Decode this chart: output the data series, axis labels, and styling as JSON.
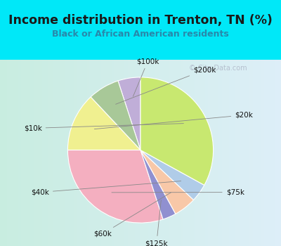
{
  "title": "Income distribution in Trenton, TN (%)",
  "subtitle": "Black or African American residents",
  "watermark": "© City-Data.com",
  "labels": [
    "$100k",
    "$200k",
    "$20k",
    "$75k",
    "$125k",
    "$60k",
    "$40k",
    "$10k"
  ],
  "sizes": [
    5,
    7,
    13,
    30,
    3,
    5,
    4,
    33
  ],
  "colors": [
    "#c0aed8",
    "#a8c898",
    "#f0f090",
    "#f4afc0",
    "#9090d0",
    "#f8c8a8",
    "#b0cce8",
    "#c8e870"
  ],
  "bg_color": "#00e8f8",
  "chart_bg_color_left": "#c8ede0",
  "chart_bg_color_right": "#ddeef8",
  "title_color": "#1a1a1a",
  "subtitle_color": "#2888aa",
  "watermark_color": "#b0b8c8",
  "label_color": "#111111",
  "startangle": 90
}
